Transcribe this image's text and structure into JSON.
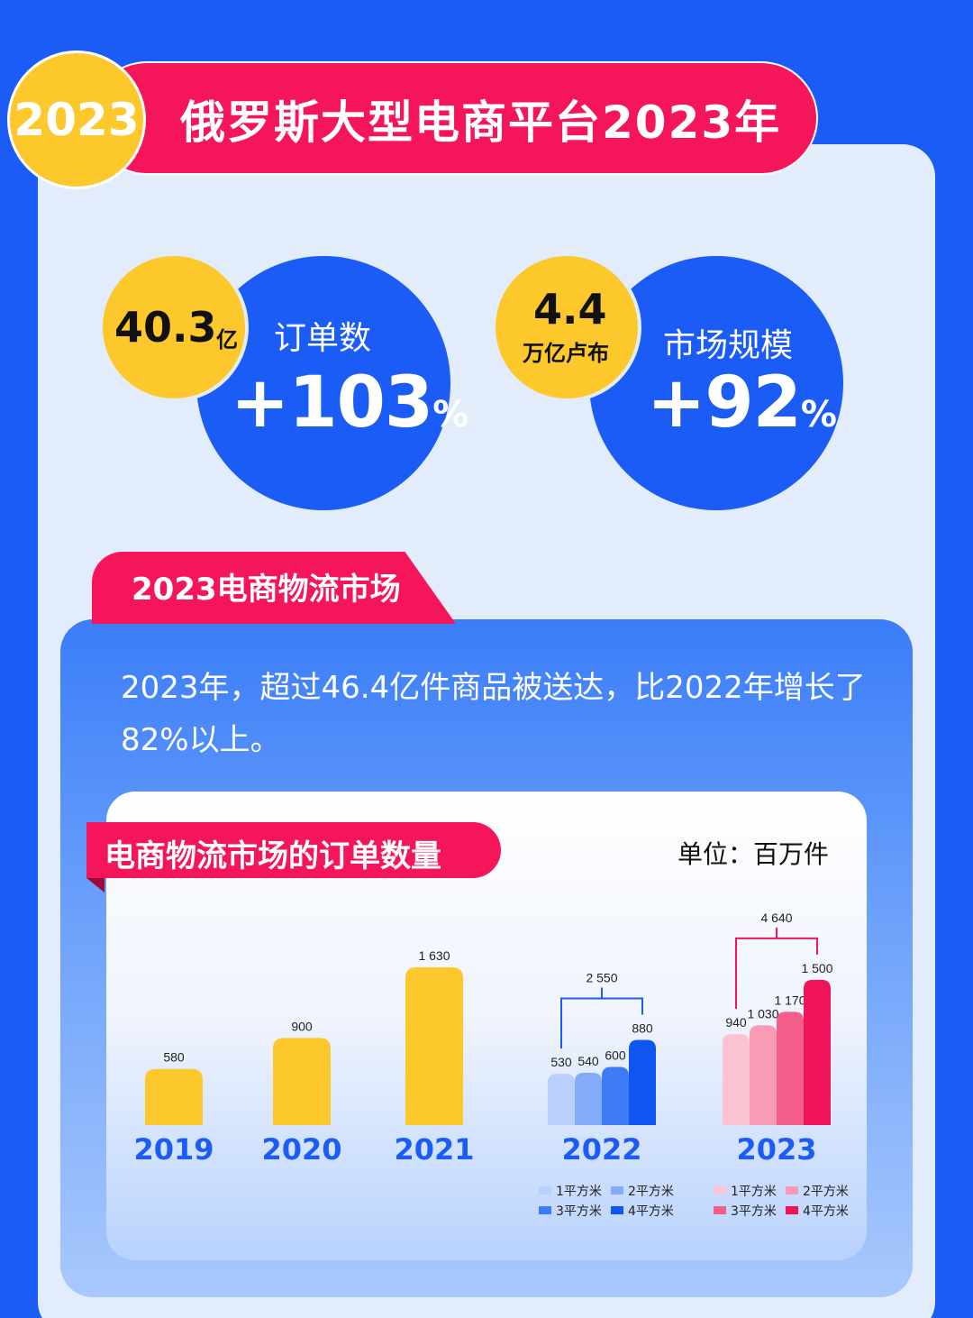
{
  "header": {
    "year_badge": "2023",
    "title": "俄罗斯大型电商平台2023年"
  },
  "stats": [
    {
      "yellow_value": "40.3",
      "yellow_unit": "亿",
      "label": "订单数",
      "change": "+103",
      "change_unit": "%"
    },
    {
      "yellow_value": "4.4",
      "yellow_unit": "万亿卢布",
      "label": "市场规模",
      "change": "+92",
      "change_unit": "%"
    }
  ],
  "market": {
    "tab_title": "2023电商物流市场",
    "text": "2023年，超过46.4亿件商品被送达，比2022年增长了82%以上。"
  },
  "chart_card": {
    "title": "电商物流市场的订单数量",
    "unit": "单位：百万件"
  },
  "colors": {
    "blue": "#1a5cf5",
    "red": "#f5155a",
    "yellow": "#fdc82b",
    "blue_shades": [
      "#b8d0fb",
      "#84abfa",
      "#3d7cf6",
      "#0f55ef"
    ],
    "red_shades": [
      "#fcc3d2",
      "#f99bb5",
      "#f55d8a",
      "#f0155a"
    ]
  },
  "chart_data": {
    "type": "bar",
    "title": "电商物流市场的订单数量",
    "unit": "单位：百万件",
    "categories": [
      "2019",
      "2020",
      "2021",
      "2022",
      "2023"
    ],
    "single_values": [
      {
        "year": "2019",
        "value": 580,
        "label": "580"
      },
      {
        "year": "2020",
        "value": 900,
        "label": "900"
      },
      {
        "year": "2021",
        "value": 1630,
        "label": "1 630"
      }
    ],
    "grouped": [
      {
        "year": "2022",
        "total": 2550,
        "total_label": "2 550",
        "series": [
          {
            "name": "1平方米",
            "value": 530,
            "label": "530"
          },
          {
            "name": "2平方米",
            "value": 540,
            "label": "540"
          },
          {
            "name": "3平方米",
            "value": 600,
            "label": "600"
          },
          {
            "name": "4平方米",
            "value": 880,
            "label": "880"
          }
        ]
      },
      {
        "year": "2023",
        "total": 4640,
        "total_label": "4 640",
        "series": [
          {
            "name": "1平方米",
            "value": 940,
            "label": "940"
          },
          {
            "name": "2平方米",
            "value": 1030,
            "label": "1 030"
          },
          {
            "name": "3平方米",
            "value": 1170,
            "label": "1 170"
          },
          {
            "name": "4平方米",
            "value": 1500,
            "label": "1 500"
          }
        ]
      }
    ],
    "legend": [
      "1平方米",
      "2平方米",
      "3平方米",
      "4平方米"
    ]
  }
}
